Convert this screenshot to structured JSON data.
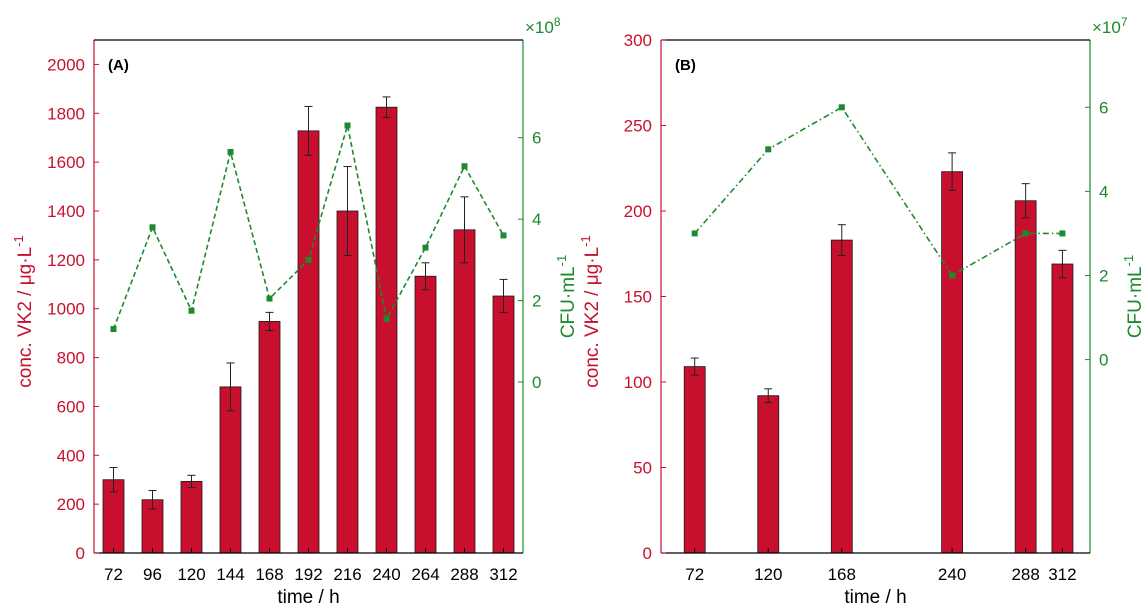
{
  "colors": {
    "bar": "#C8102E",
    "bar_stroke": "#1a1a1a",
    "left_axis": "#C8102E",
    "right_axis": "#1E8A2E",
    "cfu_line": "#1E8A2E",
    "axis_black": "#000000"
  },
  "chart_data": [
    {
      "type": "bar",
      "panel_label": "(A)",
      "xlabel": "time / h",
      "ylabel_left": "conc. VK2 / μg·L",
      "ylabel_left_sup": "-1",
      "ylabel_right": "CFU·mL",
      "ylabel_right_sup": "-1",
      "right_multiplier_base": "×10",
      "right_multiplier_exp": "8",
      "x_ticks": [
        "72",
        "96",
        "120",
        "144",
        "168",
        "192",
        "216",
        "240",
        "264",
        "288",
        "312"
      ],
      "y_left_ticks": [
        "0",
        "200",
        "400",
        "600",
        "800",
        "1000",
        "1200",
        "1400",
        "1600",
        "1800",
        "2000"
      ],
      "y_right_ticks": [
        "0",
        "2",
        "4",
        "6"
      ],
      "ylim_left": [
        0,
        2100
      ],
      "ylim_right": [
        -4.2,
        8.4
      ],
      "series": [
        {
          "kind": "bar",
          "x": [
            72,
            96,
            120,
            144,
            168,
            192,
            216,
            240,
            264,
            288,
            312
          ],
          "values": [
            300,
            218,
            293,
            680,
            948,
            1728,
            1400,
            1825,
            1133,
            1323,
            1052
          ],
          "errors": [
            50,
            38,
            25,
            98,
            37,
            100,
            182,
            42,
            55,
            135,
            68
          ]
        },
        {
          "kind": "line",
          "style": "dashed",
          "x": [
            72,
            96,
            120,
            144,
            168,
            192,
            216,
            240,
            264,
            288,
            312
          ],
          "values": [
            1.3,
            3.8,
            1.75,
            5.65,
            2.05,
            3.0,
            6.3,
            1.55,
            3.3,
            5.3,
            3.6
          ]
        }
      ]
    },
    {
      "type": "bar",
      "panel_label": "(B)",
      "xlabel": "time / h",
      "ylabel_left": "conc. VK2 / μg·L",
      "ylabel_left_sup": "-1",
      "ylabel_right": "CFU·mL",
      "ylabel_right_sup": "-1",
      "right_multiplier_base": "×10",
      "right_multiplier_exp": "7",
      "x_ticks": [
        "72",
        "120",
        "168",
        "240",
        "288",
        "312"
      ],
      "y_left_ticks": [
        "0",
        "50",
        "100",
        "150",
        "200",
        "250",
        "300"
      ],
      "y_right_ticks": [
        "0",
        "2",
        "4",
        "6"
      ],
      "ylim_left": [
        0,
        300
      ],
      "ylim_right": [
        -4.6,
        7.6
      ],
      "series": [
        {
          "kind": "bar",
          "x": [
            72,
            120,
            168,
            240,
            288,
            312
          ],
          "values": [
            109,
            92,
            183,
            223,
            206,
            169
          ],
          "errors": [
            5,
            4,
            9,
            11,
            10,
            8
          ]
        },
        {
          "kind": "line",
          "style": "dash-dot",
          "x": [
            72,
            120,
            168,
            240,
            288,
            312
          ],
          "values": [
            3.0,
            5.0,
            6.0,
            2.0,
            3.0,
            3.0
          ]
        }
      ]
    }
  ]
}
